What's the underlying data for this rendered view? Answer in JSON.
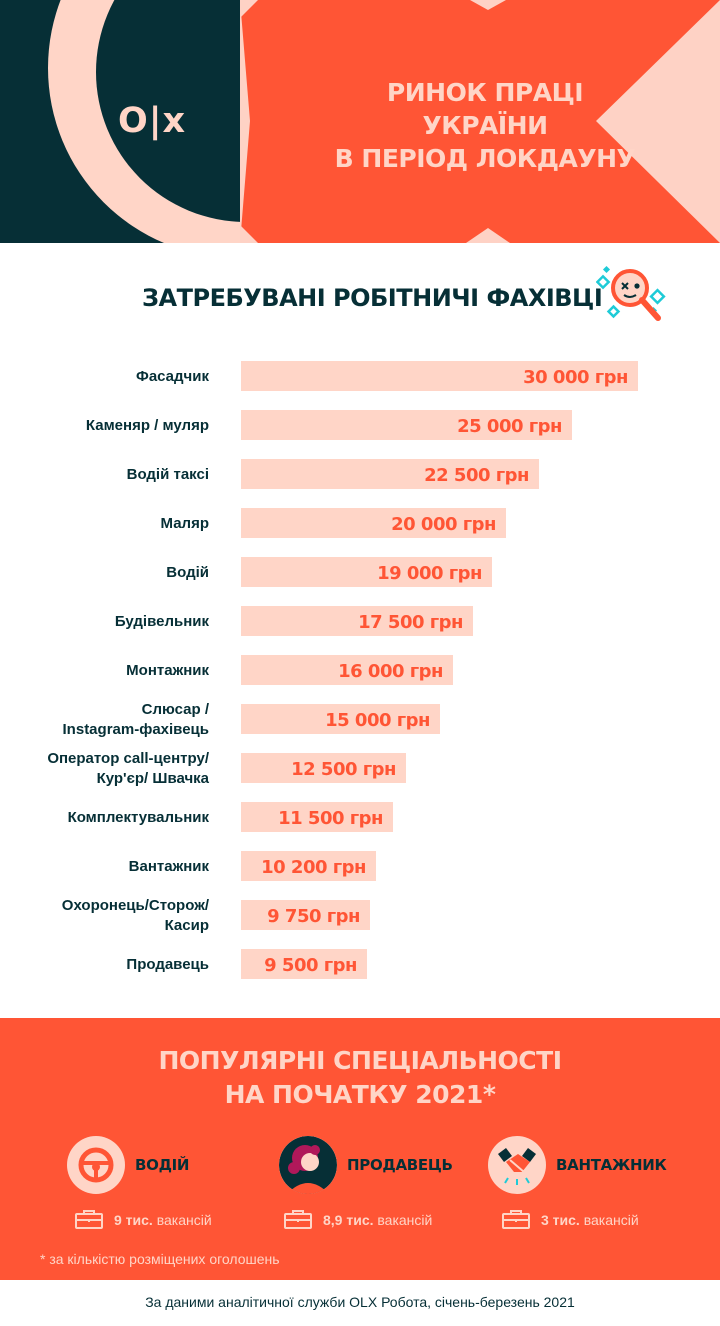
{
  "brand": {
    "logo": "O|x"
  },
  "header": {
    "title_lines": [
      "РИНОК ПРАЦІ",
      "УКРАЇНИ",
      "В ПЕРІОД ЛОКДАУНУ"
    ]
  },
  "chart_data": {
    "type": "bar",
    "title": "ЗАТРЕБУВАНІ РОБІТНИЧІ ФАХІВЦІ",
    "orientation": "horizontal",
    "unit": "грн",
    "categories": [
      "Фасадчик",
      "Каменяр / муляр",
      "Водій таксі",
      "Маляр",
      "Водій",
      "Будівельник",
      "Монтажник",
      "Слюсар / Instagram-фахівець",
      "Оператор call-центру/ Кур'єр/ Швачка",
      "Комплектувальник",
      "Вантажник",
      "Охоронець/Сторож/ Касир",
      "Продавець"
    ],
    "label_lines": [
      [
        "Фасадчик"
      ],
      [
        "Каменяр / муляр"
      ],
      [
        "Водій таксі"
      ],
      [
        "Маляр"
      ],
      [
        "Водій"
      ],
      [
        "Будівельник"
      ],
      [
        "Монтажник"
      ],
      [
        "Слюсар /",
        "Instagram-фахівець"
      ],
      [
        "Оператор call-центру/",
        "Кур'єр/ Швачка"
      ],
      [
        "Комплектувальник"
      ],
      [
        "Вантажник"
      ],
      [
        "Охоронець/Сторож/",
        "Касир"
      ],
      [
        "Продавець"
      ]
    ],
    "values": [
      30000,
      25000,
      22500,
      20000,
      19000,
      17500,
      16000,
      15000,
      12500,
      11500,
      10200,
      9750,
      9500
    ],
    "value_labels": [
      "30 000 грн",
      "25 000 грн",
      "22 500 грн",
      "20 000 грн",
      "19 000 грн",
      "17 500 грн",
      "16 000 грн",
      "15 000 грн",
      "12 500 грн",
      "11 500 грн",
      "10 200 грн",
      "9 750 грн",
      "9 500 грн"
    ],
    "legend": "none",
    "grid": false
  },
  "popular": {
    "title_lines": [
      "ПОПУЛЯРНІ СПЕЦІАЛЬНОСТІ",
      "НА ПОЧАТКУ 2021*"
    ],
    "items": [
      {
        "name": "ВОДІЙ",
        "icon": "steering-wheel-icon",
        "count": "9 тис.",
        "count_suffix": "вакансій"
      },
      {
        "name": "ПРОДАВЕЦЬ",
        "icon": "saleswoman-avatar-icon",
        "count": "8,9 тис.",
        "count_suffix": "вакансій"
      },
      {
        "name": "ВАНТАЖНИК",
        "icon": "handshake-icon",
        "count": "3 тис.",
        "count_suffix": "вакансій"
      }
    ],
    "footnote": "* за кількістю розміщених оголошень"
  },
  "footer": {
    "source": "За даними аналітичної служби OLX Робота, січень-березень 2021"
  },
  "colors": {
    "dark": "#062f36",
    "accent": "#ff5535",
    "peach": "#ffd5c7",
    "bar": "#ffd5c7"
  }
}
